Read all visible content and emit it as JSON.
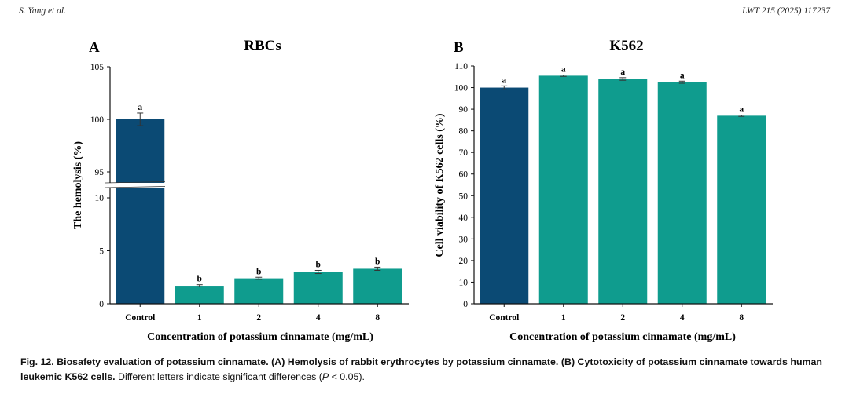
{
  "header": {
    "left": "S. Yang et al.",
    "right": "LWT 215 (2025) 117237"
  },
  "colors": {
    "control": "#0b4a74",
    "treatment": "#0f9c8e",
    "axis": "#111111"
  },
  "chart_data": [
    {
      "panel": "A",
      "type": "bar",
      "title": "RBCs",
      "xlabel": "Concentration of potassium cinnamate (mg/mL)",
      "ylabel": "The hemolysis (%)",
      "categories": [
        "Control",
        "1",
        "2",
        "4",
        "8"
      ],
      "values": [
        100,
        1.7,
        2.4,
        3.0,
        3.3
      ],
      "errors": [
        0.6,
        0.1,
        0.1,
        0.15,
        0.15
      ],
      "letters": [
        "a",
        "b",
        "b",
        "b",
        "b"
      ],
      "broken_axis": {
        "lower_range": [
          0,
          11
        ],
        "upper_range": [
          94,
          105
        ]
      },
      "yticks_lower": [
        0,
        5,
        10
      ],
      "yticks_upper": [
        95,
        100,
        105
      ]
    },
    {
      "panel": "B",
      "type": "bar",
      "title": "K562",
      "xlabel": "Concentration of potassium cinnamate (mg/mL)",
      "ylabel": "Cell viability of K562 cells (%)",
      "categories": [
        "Control",
        "1",
        "2",
        "4",
        "8"
      ],
      "values": [
        100,
        105.5,
        104,
        102.5,
        87
      ],
      "errors": [
        0.8,
        0.3,
        0.6,
        0.5,
        0.3
      ],
      "letters": [
        "a",
        "a",
        "a",
        "a",
        "a"
      ],
      "ylim": [
        0,
        110
      ],
      "yticks": [
        0,
        10,
        20,
        30,
        40,
        50,
        60,
        70,
        80,
        90,
        100,
        110
      ]
    }
  ],
  "caption": {
    "bold": "Fig. 12. Biosafety evaluation of potassium cinnamate. (A) Hemolysis of rabbit erythrocytes by potassium cinnamate. (B) Cytotoxicity of potassium cinnamate towards human leukemic K562 cells.",
    "normal": " Different letters indicate significant differences (",
    "p_italic": "P",
    "tail": " < 0.05)."
  }
}
